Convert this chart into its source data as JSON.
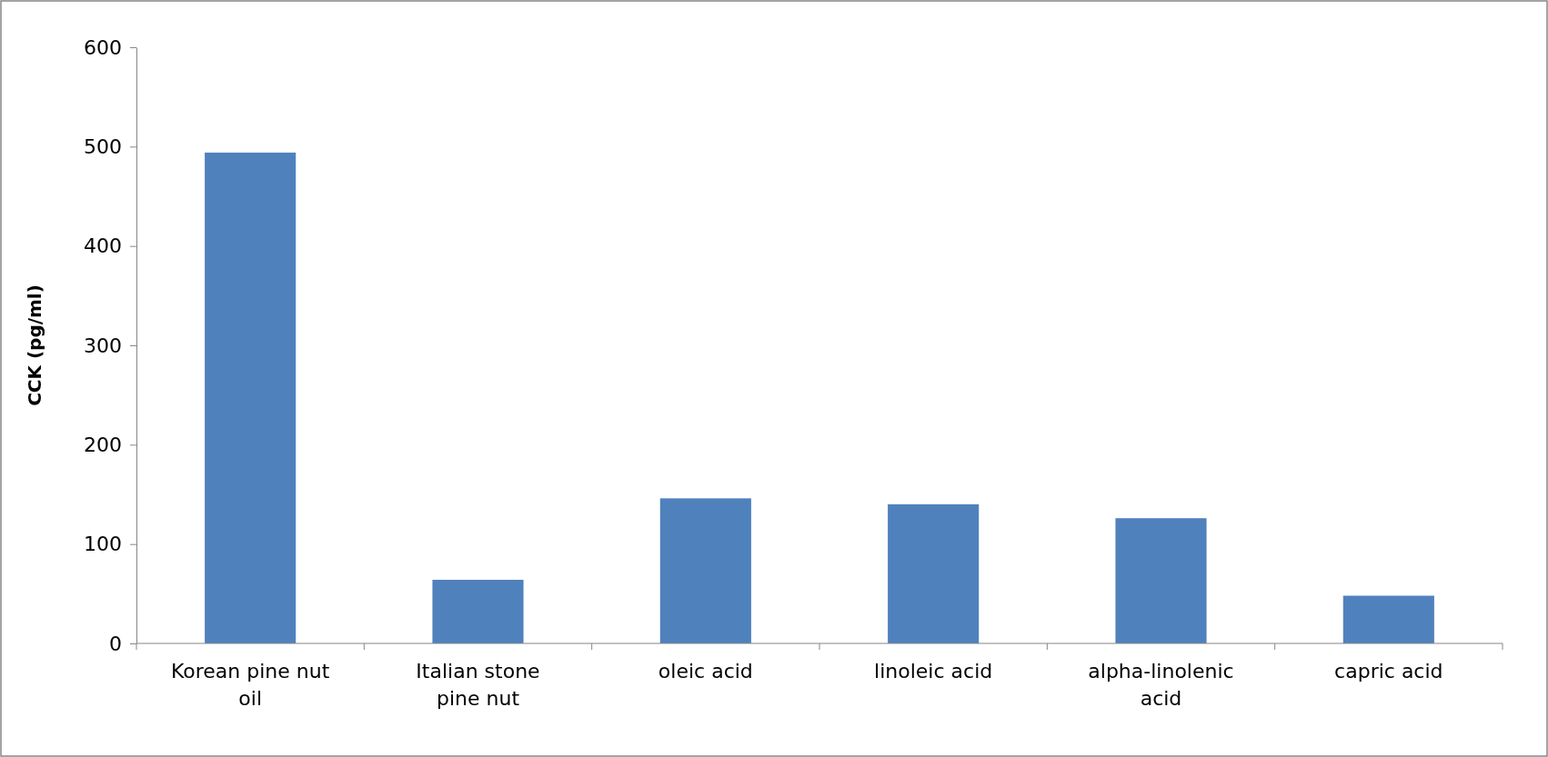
{
  "chart_data": {
    "type": "bar",
    "ylabel": "CCK (pg/ml)",
    "categories": [
      "Korean pine nut oil",
      "Italian stone pine nut",
      "oleic acid",
      "linoleic acid",
      "alpha-linolenic acid",
      "capric acid"
    ],
    "values": [
      494,
      64,
      146,
      140,
      126,
      48
    ],
    "color": "#4f81bd",
    "ylim": [
      0,
      600
    ],
    "yticks": [
      0,
      100,
      200,
      300,
      400,
      500,
      600
    ],
    "grid": false
  }
}
